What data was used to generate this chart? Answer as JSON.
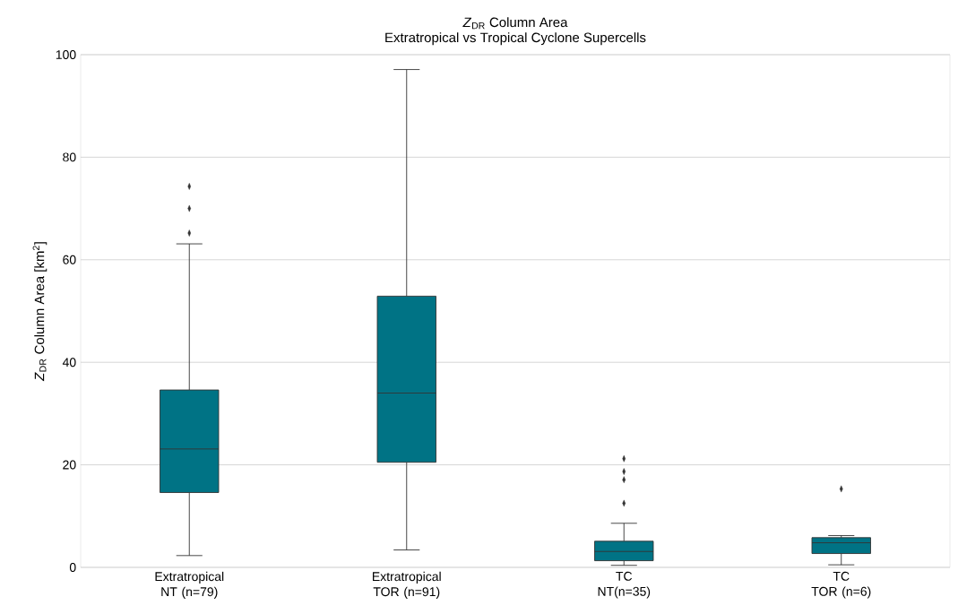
{
  "chart_data": {
    "type": "box",
    "title": "*Z*$_{DR}$ Column Area",
    "subtitle": "Extratropical vs Tropical Cyclone Supercells",
    "ylabel": "*Z*$_{DR}$ Column Area [km$^{2}$]",
    "categories": [
      "Extratropical\nNT (n=79)",
      "Extratropical\nTOR (n=91)",
      "TC\nNT(n=35)",
      "TC\nTOR (n=6)"
    ],
    "color": "#007385",
    "boxes": [
      {
        "low": 2.3,
        "q1": 14.6,
        "median": 23.1,
        "q3": 34.6,
        "high": 63.1,
        "outliers": [
          65.2,
          70.0,
          74.3
        ]
      },
      {
        "low": 3.4,
        "q1": 20.5,
        "median": 34.0,
        "q3": 52.9,
        "high": 97.1
      },
      {
        "low": 0.4,
        "q1": 1.3,
        "median": 3.1,
        "q3": 5.1,
        "high": 8.6,
        "outliers": [
          12.5,
          17.1,
          18.7,
          21.2
        ]
      },
      {
        "low": 0.5,
        "q1": 2.7,
        "median": 4.8,
        "q3": 5.8,
        "high": 6.2,
        "outliers": [
          15.3
        ]
      }
    ],
    "ylim": [
      0,
      100
    ],
    "yticks": [
      0,
      20,
      40,
      60,
      80,
      100
    ],
    "grid": "y",
    "marker": "diamond"
  }
}
